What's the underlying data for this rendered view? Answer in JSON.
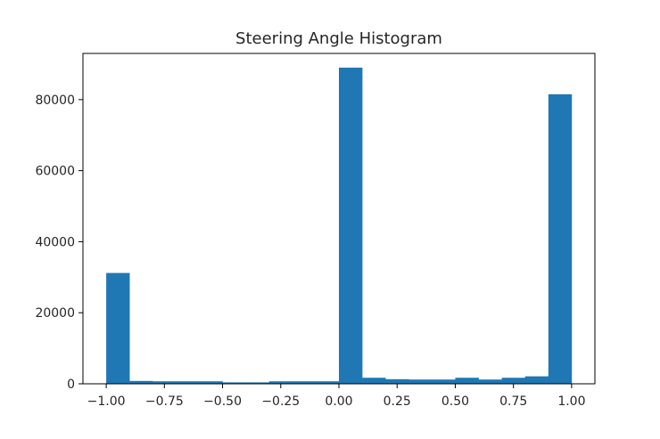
{
  "chart_data": {
    "type": "bar",
    "title": "Steering Angle Histogram",
    "xlabel": "",
    "ylabel": "",
    "xlim": [
      -1.1,
      1.1
    ],
    "ylim": [
      0,
      93000
    ],
    "bin_edges": [
      -1.0,
      -0.9,
      -0.8,
      -0.7,
      -0.6,
      -0.5,
      -0.4,
      -0.3,
      -0.2,
      -0.1,
      0.0,
      0.1,
      0.2,
      0.3,
      0.4,
      0.5,
      0.6,
      0.7,
      0.8,
      0.9,
      1.0
    ],
    "values": [
      31200,
      800,
      700,
      700,
      700,
      400,
      400,
      700,
      700,
      700,
      89000,
      1700,
      1300,
      1200,
      1200,
      1700,
      1200,
      1700,
      2100,
      81500
    ],
    "bar_color": "#1f77b4",
    "x_ticks": [
      -1.0,
      -0.75,
      -0.5,
      -0.25,
      0.0,
      0.25,
      0.5,
      0.75,
      1.0
    ],
    "x_tick_labels": [
      "−1.00",
      "−0.75",
      "−0.50",
      "−0.25",
      "0.00",
      "0.25",
      "0.50",
      "0.75",
      "1.00"
    ],
    "y_ticks": [
      0,
      20000,
      40000,
      60000,
      80000
    ],
    "y_tick_labels": [
      "0",
      "20000",
      "40000",
      "60000",
      "80000"
    ],
    "grid": false,
    "legend": "none"
  }
}
